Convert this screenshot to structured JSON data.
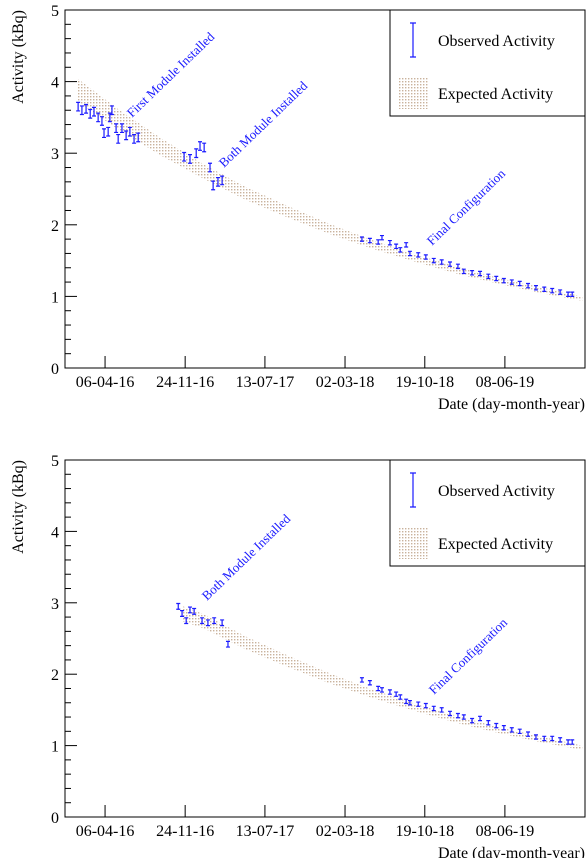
{
  "chart_data": [
    {
      "type": "scatter",
      "ylabel": "Activity (kBq)",
      "xlabel": "Date (day-month-year)",
      "ylim": [
        0,
        5
      ],
      "yticks": [
        0,
        1,
        2,
        3,
        4,
        5
      ],
      "xlim": [
        "2015-12-12",
        "2020-01-26"
      ],
      "xticks": [
        {
          "value": "2016-04-06",
          "label": "06-04-16"
        },
        {
          "value": "2016-11-24",
          "label": "24-11-16"
        },
        {
          "value": "2017-07-13",
          "label": "13-07-17"
        },
        {
          "value": "2018-03-02",
          "label": "02-03-18"
        },
        {
          "value": "2018-10-19",
          "label": "19-10-18"
        },
        {
          "value": "2019-06-08",
          "label": "08-06-19"
        }
      ],
      "legend": "upper right",
      "annotations": [
        "First Module Installed",
        "Both Module Installed",
        "Final Configuration"
      ],
      "series": [
        {
          "name": "Observed Activity",
          "color": "#1a1aff",
          "x": [
            "2016-01-19",
            "2016-01-30",
            "2016-02-11",
            "2016-02-23",
            "2016-03-05",
            "2016-03-17",
            "2016-03-28",
            "2016-04-03",
            "2016-04-15",
            "2016-04-20",
            "2016-04-26",
            "2016-05-08",
            "2016-05-14",
            "2016-05-25",
            "2016-06-06",
            "2016-06-17",
            "2016-06-29",
            "2016-07-11",
            "2016-11-21",
            "2016-12-08",
            "2016-12-26",
            "2017-01-06",
            "2017-01-18",
            "2017-02-04",
            "2017-02-13",
            "2017-02-27",
            "2017-03-11",
            "2018-04-20",
            "2018-05-13",
            "2018-06-06",
            "2018-06-17",
            "2018-07-10",
            "2018-07-28",
            "2018-08-09",
            "2018-08-26",
            "2018-09-06",
            "2018-09-30",
            "2018-10-22",
            "2018-11-14",
            "2018-12-07",
            "2018-12-31",
            "2019-01-23",
            "2019-02-09",
            "2019-03-05",
            "2019-03-28",
            "2019-04-21",
            "2019-05-14",
            "2019-06-05",
            "2019-06-28",
            "2019-07-21",
            "2019-08-14",
            "2019-09-06",
            "2019-09-30",
            "2019-10-23",
            "2019-11-15",
            "2019-12-08",
            "2019-12-20"
          ],
          "values": [
            3.65,
            3.6,
            3.62,
            3.55,
            3.58,
            3.5,
            3.45,
            3.28,
            3.3,
            3.5,
            3.6,
            3.35,
            3.2,
            3.35,
            3.25,
            3.3,
            3.2,
            3.22,
            2.95,
            2.92,
            3.0,
            3.1,
            3.08,
            2.8,
            2.55,
            2.6,
            2.62,
            1.8,
            1.78,
            1.76,
            1.82,
            1.75,
            1.7,
            1.65,
            1.72,
            1.6,
            1.58,
            1.55,
            1.5,
            1.48,
            1.45,
            1.42,
            1.35,
            1.33,
            1.32,
            1.28,
            1.25,
            1.22,
            1.2,
            1.18,
            1.15,
            1.12,
            1.1,
            1.08,
            1.06,
            1.03,
            1.03
          ],
          "errors": [
            0.06,
            0.06,
            0.06,
            0.06,
            0.06,
            0.06,
            0.06,
            0.06,
            0.06,
            0.06,
            0.06,
            0.06,
            0.06,
            0.06,
            0.06,
            0.06,
            0.06,
            0.06,
            0.06,
            0.06,
            0.06,
            0.06,
            0.06,
            0.06,
            0.06,
            0.06,
            0.06,
            0.03,
            0.03,
            0.03,
            0.03,
            0.03,
            0.03,
            0.03,
            0.03,
            0.03,
            0.03,
            0.03,
            0.03,
            0.03,
            0.03,
            0.03,
            0.03,
            0.03,
            0.03,
            0.03,
            0.03,
            0.03,
            0.03,
            0.03,
            0.03,
            0.03,
            0.03,
            0.03,
            0.03,
            0.03,
            0.03
          ]
        },
        {
          "name": "Expected Activity",
          "color": "#c9b29c",
          "x": [
            "2016-01-18",
            "2016-05-18",
            "2016-09-18",
            "2017-01-18",
            "2017-05-18",
            "2017-09-18",
            "2018-01-18",
            "2018-05-18",
            "2018-09-18",
            "2019-01-18",
            "2019-05-18",
            "2019-09-18",
            "2020-01-18"
          ],
          "lower": [
            3.72,
            3.32,
            2.96,
            2.64,
            2.35,
            2.1,
            1.87,
            1.67,
            1.49,
            1.32,
            1.18,
            1.05,
            0.94
          ],
          "upper": [
            4.04,
            3.6,
            3.2,
            2.84,
            2.53,
            2.26,
            2.01,
            1.79,
            1.59,
            1.42,
            1.26,
            1.13,
            1.0
          ]
        }
      ]
    },
    {
      "type": "scatter",
      "ylabel": "Activity (kBq)",
      "xlabel": "Date (day-month-year)",
      "ylim": [
        0,
        5
      ],
      "yticks": [
        0,
        1,
        2,
        3,
        4,
        5
      ],
      "xlim": [
        "2015-12-12",
        "2020-01-26"
      ],
      "xticks": [
        {
          "value": "2016-04-06",
          "label": "06-04-16"
        },
        {
          "value": "2016-11-24",
          "label": "24-11-16"
        },
        {
          "value": "2017-07-13",
          "label": "13-07-17"
        },
        {
          "value": "2018-03-02",
          "label": "02-03-18"
        },
        {
          "value": "2018-10-19",
          "label": "19-10-18"
        },
        {
          "value": "2019-06-08",
          "label": "08-06-19"
        }
      ],
      "legend": "upper right",
      "annotations": [
        "Both Module Installed",
        "Final Configuration"
      ],
      "series": [
        {
          "name": "Observed Activity",
          "color": "#1a1aff",
          "x": [
            "2016-11-04",
            "2016-11-15",
            "2016-11-27",
            "2016-12-08",
            "2016-12-20",
            "2017-01-12",
            "2017-01-29",
            "2017-02-16",
            "2017-03-11",
            "2017-03-28",
            "2018-04-20",
            "2018-05-13",
            "2018-06-06",
            "2018-06-17",
            "2018-07-10",
            "2018-07-28",
            "2018-08-09",
            "2018-08-26",
            "2018-09-06",
            "2018-09-30",
            "2018-10-22",
            "2018-11-14",
            "2018-12-07",
            "2018-12-31",
            "2019-01-23",
            "2019-02-09",
            "2019-03-05",
            "2019-03-28",
            "2019-04-21",
            "2019-05-14",
            "2019-06-05",
            "2019-06-28",
            "2019-07-21",
            "2019-08-14",
            "2019-09-06",
            "2019-09-30",
            "2019-10-23",
            "2019-11-15",
            "2019-12-08",
            "2019-12-20"
          ],
          "values": [
            2.95,
            2.85,
            2.75,
            2.9,
            2.88,
            2.75,
            2.72,
            2.75,
            2.72,
            2.42,
            1.92,
            1.88,
            1.8,
            1.78,
            1.75,
            1.72,
            1.68,
            1.62,
            1.6,
            1.58,
            1.56,
            1.52,
            1.5,
            1.45,
            1.42,
            1.4,
            1.35,
            1.38,
            1.32,
            1.28,
            1.25,
            1.22,
            1.2,
            1.16,
            1.12,
            1.1,
            1.1,
            1.08,
            1.05,
            1.05
          ],
          "errors": [
            0.04,
            0.04,
            0.04,
            0.04,
            0.04,
            0.04,
            0.04,
            0.04,
            0.04,
            0.04,
            0.03,
            0.03,
            0.03,
            0.03,
            0.03,
            0.03,
            0.03,
            0.03,
            0.03,
            0.03,
            0.03,
            0.03,
            0.03,
            0.03,
            0.03,
            0.03,
            0.03,
            0.03,
            0.03,
            0.03,
            0.03,
            0.03,
            0.03,
            0.03,
            0.03,
            0.03,
            0.03,
            0.03,
            0.03,
            0.03
          ]
        },
        {
          "name": "Expected Activity",
          "color": "#c9b29c",
          "x": [
            "2016-11-18",
            "2017-01-18",
            "2017-05-18",
            "2017-09-18",
            "2018-01-18",
            "2018-05-18",
            "2018-09-18",
            "2019-01-18",
            "2019-05-18",
            "2019-09-18",
            "2020-01-18"
          ],
          "lower": [
            2.74,
            2.64,
            2.35,
            2.1,
            1.87,
            1.67,
            1.49,
            1.32,
            1.18,
            1.05,
            0.94
          ],
          "upper": [
            2.95,
            2.84,
            2.53,
            2.26,
            2.01,
            1.79,
            1.59,
            1.42,
            1.26,
            1.13,
            1.0
          ]
        }
      ]
    }
  ]
}
